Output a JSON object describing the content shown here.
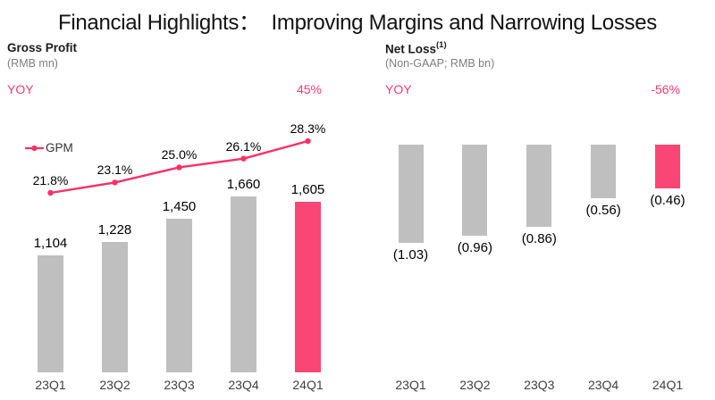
{
  "page": {
    "title": "Financial Highlights：  Improving Margins and Narrowing Losses"
  },
  "colors": {
    "accent_pink": "#FA4674",
    "line_pink": "#FB3064",
    "yoy_pink": "#F43A72",
    "bar_gray": "#BFBFBF",
    "heading_dark": "#1A1A1A",
    "subtitle_gray": "#7F7F7F",
    "axis_label_gray": "#3F3F3F"
  },
  "chart_data": [
    {
      "id": "gross-profit",
      "type": "bar",
      "title": "Gross Profit",
      "subtitle": "(RMB mn)",
      "yoy_label": "YOY",
      "yoy_value": "45%",
      "legend_position": "top-left",
      "grid": false,
      "categories": [
        "23Q1",
        "23Q2",
        "23Q3",
        "23Q4",
        "24Q1"
      ],
      "series": [
        {
          "name": "Gross Profit",
          "type": "bar",
          "values": [
            1104,
            1228,
            1450,
            1660,
            1605
          ],
          "labels": [
            "1,104",
            "1,228",
            "1,450",
            "1,660",
            "1,605"
          ],
          "highlight_index": 4
        },
        {
          "name": "GPM",
          "type": "line",
          "unit": "%",
          "values": [
            21.8,
            23.1,
            25.0,
            26.1,
            28.3
          ],
          "labels": [
            "21.8%",
            "23.1%",
            "25.0%",
            "26.1%",
            "28.3%"
          ]
        }
      ]
    },
    {
      "id": "net-loss",
      "type": "bar",
      "title": "Net Loss",
      "title_superscript": "(1)",
      "subtitle": "(Non-GAAP; RMB bn)",
      "yoy_label": "YOY",
      "yoy_value": "-56%",
      "grid": false,
      "categories": [
        "23Q1",
        "23Q2",
        "23Q3",
        "23Q4",
        "24Q1"
      ],
      "series": [
        {
          "name": "Net Loss",
          "type": "bar",
          "values": [
            -1.03,
            -0.96,
            -0.86,
            -0.56,
            -0.46
          ],
          "labels": [
            "(1.03)",
            "(0.96)",
            "(0.86)",
            "(0.56)",
            "(0.46)"
          ],
          "highlight_index": 4
        }
      ]
    }
  ]
}
